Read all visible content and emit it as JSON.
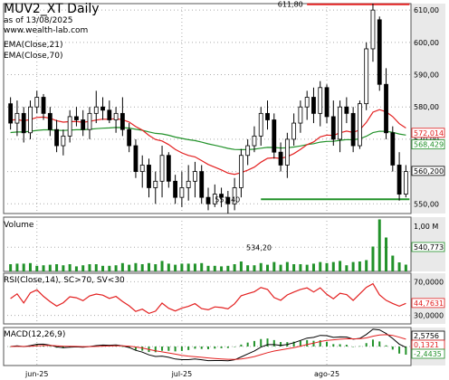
{
  "header": {
    "title": "MUV2_XT Daily",
    "date": "as of 13/08/2025",
    "site": "www.wealth-lab.com"
  },
  "chart_data": [
    {
      "type": "candlestick",
      "panel": "price",
      "legend": [
        "EMA(Close,21)",
        "EMA(Close,70)"
      ],
      "y_ticks": [
        "610,00",
        "600,00",
        "590,00",
        "580,00",
        "570,00",
        "560,00",
        "550,00"
      ],
      "ylim": [
        547,
        612
      ],
      "grid": true,
      "annotations": {
        "high_label": "611,80",
        "high": 611.8,
        "low_label": "551,40",
        "low": 551.4
      },
      "last_values": [
        {
          "label": "572,014",
          "value": 572.0,
          "color": "#e32020"
        },
        {
          "label": "568,429",
          "value": 568.4,
          "color": "#22922a"
        },
        {
          "label": "560,200",
          "value": 560.2,
          "color": "#000000"
        }
      ],
      "candles": [
        [
          581,
          583,
          573,
          575
        ],
        [
          575,
          582,
          571,
          578
        ],
        [
          578,
          580,
          569,
          572
        ],
        [
          572,
          582,
          570,
          580
        ],
        [
          580,
          585,
          578,
          583
        ],
        [
          583,
          584,
          576,
          578
        ],
        [
          578,
          580,
          571,
          573
        ],
        [
          573,
          576,
          566,
          568
        ],
        [
          568,
          573,
          565,
          571
        ],
        [
          571,
          579,
          569,
          577
        ],
        [
          577,
          580,
          574,
          576
        ],
        [
          576,
          579,
          571,
          573
        ],
        [
          573,
          580,
          570,
          578
        ],
        [
          578,
          585,
          575,
          580
        ],
        [
          580,
          583,
          576,
          579
        ],
        [
          579,
          582,
          575,
          576
        ],
        [
          576,
          580,
          572,
          578
        ],
        [
          578,
          583,
          571,
          573
        ],
        [
          573,
          575,
          566,
          568
        ],
        [
          568,
          570,
          558,
          560
        ],
        [
          560,
          565,
          555,
          562
        ],
        [
          562,
          564,
          552,
          555
        ],
        [
          555,
          560,
          550,
          557
        ],
        [
          557,
          568,
          552,
          565
        ],
        [
          565,
          566,
          555,
          557
        ],
        [
          557,
          559,
          550,
          552
        ],
        [
          552,
          560,
          549,
          555
        ],
        [
          555,
          562,
          551,
          557
        ],
        [
          557,
          563,
          552,
          560
        ],
        [
          560,
          562,
          550,
          552
        ],
        [
          552,
          555,
          548,
          550
        ],
        [
          550,
          556,
          549,
          553
        ],
        [
          553,
          555,
          549,
          552
        ],
        [
          552,
          554,
          547,
          550
        ],
        [
          550,
          558,
          548,
          555
        ],
        [
          555,
          567,
          552,
          565
        ],
        [
          565,
          570,
          562,
          568
        ],
        [
          568,
          574,
          566,
          571
        ],
        [
          571,
          580,
          568,
          578
        ],
        [
          578,
          582,
          573,
          576
        ],
        [
          576,
          578,
          564,
          566
        ],
        [
          566,
          569,
          560,
          562
        ],
        [
          562,
          572,
          558,
          570
        ],
        [
          570,
          578,
          568,
          575
        ],
        [
          575,
          582,
          572,
          580
        ],
        [
          580,
          585,
          576,
          583
        ],
        [
          583,
          586,
          575,
          578
        ],
        [
          578,
          588,
          574,
          586
        ],
        [
          586,
          587,
          575,
          577
        ],
        [
          577,
          582,
          568,
          570
        ],
        [
          570,
          582,
          566,
          580
        ],
        [
          580,
          583,
          575,
          578
        ],
        [
          578,
          580,
          566,
          568
        ],
        [
          568,
          582,
          567,
          581
        ],
        [
          581,
          600,
          579,
          598
        ],
        [
          598,
          612,
          594,
          610
        ],
        [
          607,
          608,
          585,
          587
        ],
        [
          587,
          592,
          570,
          572
        ],
        [
          572,
          574,
          560,
          562
        ],
        [
          562,
          566,
          551,
          553
        ],
        [
          553,
          562,
          552,
          560
        ]
      ]
    },
    {
      "type": "bar",
      "panel": "volume",
      "name": "Volume",
      "y_tick": "1,00 M",
      "level_label": "534,20",
      "last_label": "540,773",
      "ylim": [
        0,
        1.2
      ]
    },
    {
      "type": "line",
      "panel": "rsi",
      "name": "RSI(Close,14), SC>70, SV<30",
      "y_ticks": [
        "70,0000",
        "30,0000"
      ],
      "last_label": "44,7631",
      "ylim": [
        20,
        80
      ]
    },
    {
      "type": "line",
      "panel": "macd",
      "name": "MACD(12,26,9)",
      "last_labels": [
        {
          "label": "2,5756",
          "color": "#000000"
        },
        {
          "label": "0,1321",
          "color": "#e32020"
        },
        {
          "label": "-2,4435",
          "color": "#22922a"
        }
      ],
      "x_labels": [
        "jun-25",
        "jul-25",
        "ago-25"
      ]
    }
  ]
}
